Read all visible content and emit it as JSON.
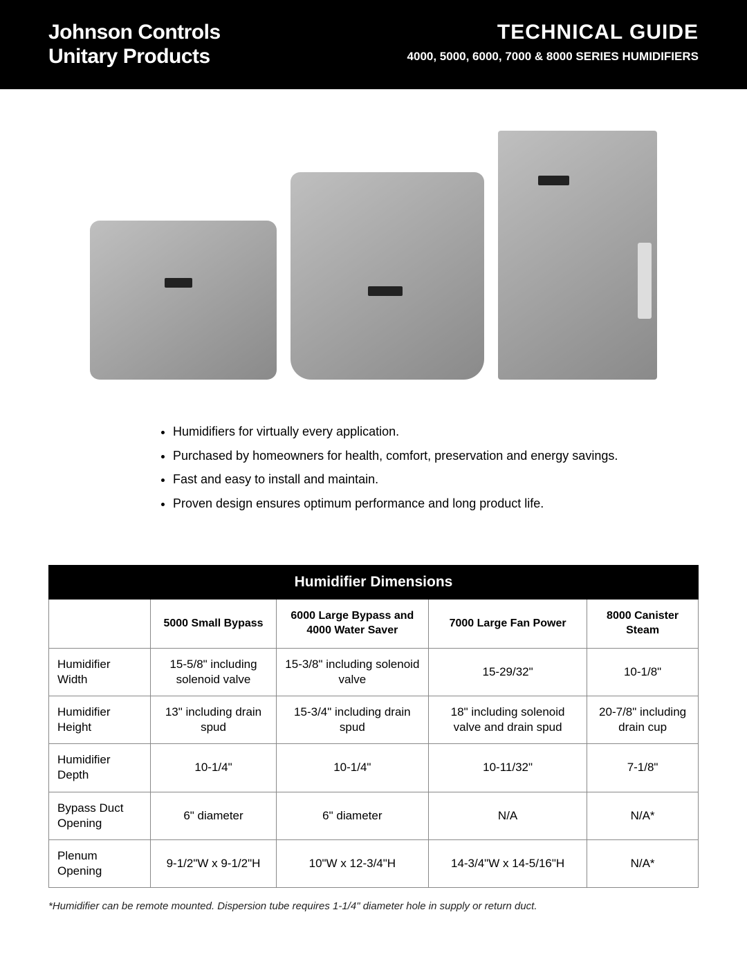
{
  "header": {
    "brand_line1": "Johnson Controls",
    "brand_line2": "Unitary Products",
    "title": "TECHNICAL GUIDE",
    "subtitle": "4000, 5000, 6000, 7000 & 8000 SERIES HUMIDIFIERS"
  },
  "bullets": [
    "Humidifiers for virtually every application.",
    "Purchased by homeowners for health, comfort, preservation and energy savings.",
    "Fast and easy to install and maintain.",
    "Proven design ensures optimum performance and long product life."
  ],
  "table": {
    "title": "Humidifier Dimensions",
    "columns": [
      "",
      "5000 Small Bypass",
      "6000 Large Bypass and 4000 Water Saver",
      "7000 Large Fan Power",
      "8000 Canister Steam"
    ],
    "rows": [
      [
        "Humidifier Width",
        "15-5/8\" including solenoid valve",
        "15-3/8\" including solenoid valve",
        "15-29/32\"",
        "10-1/8\""
      ],
      [
        "Humidifier Height",
        "13\" including drain spud",
        "15-3/4\" including drain spud",
        "18\" including solenoid valve and drain spud",
        "20-7/8\" including drain cup"
      ],
      [
        "Humidifier Depth",
        "10-1/4\"",
        "10-1/4\"",
        "10-11/32\"",
        "7-1/8\""
      ],
      [
        "Bypass Duct Opening",
        "6\" diameter",
        "6\" diameter",
        "N/A",
        "N/A*"
      ],
      [
        "Plenum Opening",
        "9-1/2\"W x 9-1/2\"H",
        "10\"W x 12-3/4\"H",
        "14-3/4\"W x 14-5/16\"H",
        "N/A*"
      ]
    ]
  },
  "footnote": "*Humidifier can be remote mounted. Dispersion tube requires 1-1/4\" diameter hole in supply or return duct.",
  "colors": {
    "header_bg": "#000000",
    "header_text": "#ffffff",
    "body_text": "#000000",
    "table_border": "#888888",
    "product_gradient_start": "#bfbfbf",
    "product_gradient_end": "#8a8a8a"
  }
}
